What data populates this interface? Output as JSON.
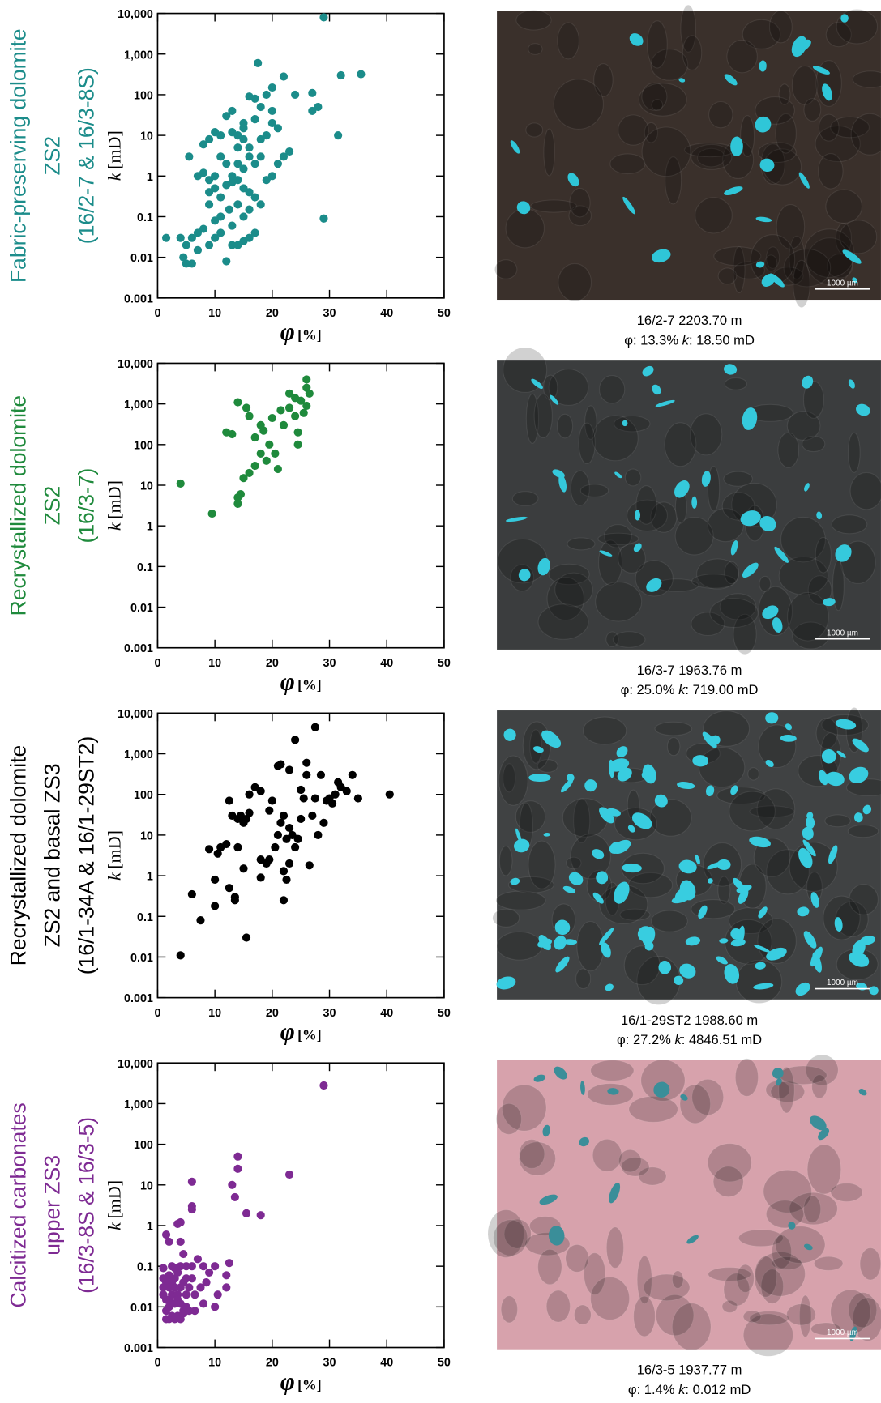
{
  "chart_data": [
    {
      "type": "scatter",
      "title_lines": [
        "Fabric-preserving dolomite",
        "ZS2",
        "(16/2-7 & 16/3-8S)"
      ],
      "color": "#1b8c8a",
      "xlabel": "φ",
      "xunit": "[%]",
      "ylabel": "k",
      "yunit": "[mD]",
      "xlim": [
        0,
        50
      ],
      "xticks": [
        0,
        10,
        20,
        30,
        40,
        50
      ],
      "ylim": [
        0.001,
        10000
      ],
      "log_y": true,
      "yticks": [
        0.001,
        0.01,
        0.1,
        1,
        10,
        100,
        {
          "value": 1000,
          "label": "1,000"
        },
        {
          "value": 10000,
          "label": "10,000"
        }
      ],
      "x": [
        29,
        17.5,
        22,
        20,
        24,
        27,
        28,
        27,
        32,
        35.5,
        31.5,
        29,
        19,
        18,
        20,
        17,
        16,
        15,
        17,
        19,
        18,
        21,
        22,
        23,
        21,
        20,
        19,
        18,
        17,
        16,
        15,
        14,
        13,
        13,
        12,
        11,
        10,
        9,
        8,
        5.5,
        7,
        8,
        9,
        10,
        11,
        12,
        13,
        14,
        15,
        16,
        17,
        18,
        12.5,
        11,
        10,
        9,
        8,
        7,
        6,
        5,
        4,
        1.5,
        4.5,
        5,
        6,
        7,
        9,
        10,
        11,
        12,
        13,
        14,
        15,
        16,
        13,
        15,
        14,
        16,
        17,
        12,
        11,
        10,
        9,
        14,
        15,
        16,
        14,
        13,
        15,
        20
      ],
      "y": [
        8000,
        600,
        280,
        150,
        100,
        110,
        50,
        40,
        300,
        320,
        10,
        0.09,
        100,
        50,
        40,
        80,
        90,
        20,
        25,
        10,
        8,
        15,
        3,
        4,
        2,
        1,
        0.8,
        3,
        2,
        3,
        1.5,
        2,
        1,
        40,
        30,
        10,
        12,
        8,
        6,
        3,
        1,
        1.2,
        0.8,
        0.5,
        0.3,
        0.6,
        0.7,
        0.8,
        0.5,
        0.4,
        0.3,
        0.2,
        0.15,
        0.1,
        0.08,
        0.2,
        0.05,
        0.04,
        0.03,
        0.02,
        0.03,
        0.03,
        0.01,
        0.007,
        0.007,
        0.015,
        0.02,
        0.03,
        0.04,
        0.008,
        0.02,
        0.02,
        0.025,
        0.03,
        0.06,
        0.1,
        0.2,
        0.15,
        0.04,
        2,
        3,
        1,
        0.4,
        5,
        8,
        5,
        10,
        12,
        15,
        20
      ],
      "image_color": "#3a302b",
      "pore_color": "#2fc6d8",
      "caption": [
        "16/2-7 2203.70 m",
        "φ: 13.3% ",
        "k",
        ": 18.50 mD"
      ],
      "scale_bar": "1000 µm"
    },
    {
      "type": "scatter",
      "title_lines": [
        "Recrystallized dolomite",
        "ZS2",
        "(16/3-7)"
      ],
      "color": "#1f8a3c",
      "xlabel": "φ",
      "xunit": "[%]",
      "ylabel": "k",
      "yunit": "[mD]",
      "xlim": [
        0,
        50
      ],
      "xticks": [
        0,
        10,
        20,
        30,
        40,
        50
      ],
      "ylim": [
        0.001,
        10000
      ],
      "log_y": true,
      "yticks": [
        0.001,
        0.01,
        0.1,
        1,
        10,
        100,
        {
          "value": 1000,
          "label": "1,000"
        },
        {
          "value": 10000,
          "label": "10,000"
        }
      ],
      "x": [
        4,
        9.5,
        12,
        13,
        14,
        15.5,
        16,
        14,
        14.5,
        15,
        16,
        17,
        18,
        18.5,
        19,
        20,
        19.5,
        20.5,
        21,
        21.5,
        22,
        23,
        23,
        24,
        24,
        24.5,
        24.5,
        25,
        25.5,
        26,
        26,
        26.5,
        26,
        14,
        17,
        18
      ],
      "y": [
        11,
        2,
        200,
        180,
        1100,
        800,
        500,
        3.5,
        6,
        15,
        20,
        30,
        60,
        220,
        40,
        450,
        100,
        60,
        25,
        700,
        300,
        800,
        1800,
        1400,
        500,
        100,
        200,
        1200,
        600,
        2500,
        4000,
        1800,
        900,
        5,
        150,
        300
      ],
      "image_color": "#3b3d3e",
      "pore_color": "#35c9dc",
      "caption": [
        "16/3-7 1963.76 m",
        "φ: 25.0% ",
        "k",
        ": 719.00 mD"
      ],
      "scale_bar": "1000 µm"
    },
    {
      "type": "scatter",
      "title_lines": [
        "Recrystallized dolomite",
        "ZS2 and basal ZS3",
        "(16/1-34A & 16/1-29ST2)"
      ],
      "color": "#000000",
      "xlabel": "φ",
      "xunit": "[%]",
      "ylabel": "k",
      "yunit": "[mD]",
      "xlim": [
        0,
        50
      ],
      "xticks": [
        0,
        10,
        20,
        30,
        40,
        50
      ],
      "ylim": [
        0.001,
        10000
      ],
      "log_y": true,
      "yticks": [
        0.001,
        0.01,
        0.1,
        1,
        10,
        100,
        {
          "value": 1000,
          "label": "1,000"
        },
        {
          "value": 10000,
          "label": "10,000"
        }
      ],
      "x": [
        4,
        6,
        7.5,
        9,
        10,
        10,
        10.5,
        11,
        12,
        12.5,
        12.5,
        13,
        13.5,
        13.5,
        14,
        14,
        14.5,
        15,
        15,
        15.5,
        15.5,
        16,
        17,
        18,
        18,
        18,
        19,
        19.5,
        20,
        20.5,
        21,
        21,
        21.5,
        21.5,
        22,
        22,
        22,
        22.5,
        22.5,
        23,
        23,
        23,
        23.5,
        24,
        24,
        24.5,
        25,
        25,
        25.5,
        26,
        26,
        26.5,
        27,
        27.5,
        27.5,
        28,
        28.5,
        29,
        29.5,
        30,
        30.5,
        31,
        31.5,
        32,
        33,
        34,
        35,
        40.5,
        19.5,
        16
      ],
      "y": [
        0.011,
        0.35,
        0.08,
        4.5,
        0.8,
        0.18,
        3.5,
        5,
        6,
        0.5,
        70,
        30,
        0.3,
        0.25,
        25,
        5,
        30,
        20,
        1.5,
        25,
        0.03,
        100,
        150,
        120,
        0.9,
        2.5,
        2,
        2.5,
        70,
        5,
        500,
        10,
        550,
        20,
        30,
        1.3,
        0.25,
        0.8,
        8,
        400,
        15,
        2,
        10,
        2200,
        5,
        8,
        130,
        25,
        80,
        600,
        300,
        1.8,
        30,
        4500,
        80,
        10,
        300,
        20,
        70,
        80,
        60,
        100,
        200,
        150,
        120,
        300,
        80,
        100,
        40,
        35
      ],
      "image_color": "#404243",
      "pore_color": "#38cde0",
      "caption": [
        "16/1-29ST2 1988.60 m",
        "φ: 27.2% ",
        "k",
        ": 4846.51 mD"
      ],
      "scale_bar": "1000 µm"
    },
    {
      "type": "scatter",
      "title_lines": [
        "Calcitized carbonates",
        "upper ZS3",
        "(16/3-8S & 16/3-5)"
      ],
      "color": "#7e2a93",
      "xlabel": "φ",
      "xunit": "[%]",
      "ylabel": "k",
      "yunit": "[mD]",
      "xlim": [
        0,
        50
      ],
      "xticks": [
        0,
        10,
        20,
        30,
        40,
        50
      ],
      "ylim": [
        0.001,
        10000
      ],
      "log_y": true,
      "yticks": [
        0.001,
        0.01,
        0.1,
        1,
        10,
        100,
        {
          "value": 1000,
          "label": "1,000"
        },
        {
          "value": 10000,
          "label": "10,000"
        }
      ],
      "x": [
        29,
        23,
        18,
        15.5,
        14,
        14,
        13,
        13.5,
        6,
        6,
        6,
        4,
        3.5,
        1.5,
        2,
        4,
        4.5,
        12.5,
        12,
        12,
        10,
        9,
        8.5,
        10.5,
        10,
        8,
        7,
        6,
        6,
        5.5,
        5,
        4.5,
        4,
        3.5,
        3,
        3,
        2.5,
        2,
        2,
        1.5,
        1.5,
        2,
        2.5,
        3,
        3.5,
        4,
        4.5,
        5,
        5.5,
        6.5,
        1,
        1,
        1,
        1,
        1.5,
        2,
        2.5,
        3,
        3.5,
        4,
        4.5,
        5,
        2.5,
        3,
        3.5,
        4,
        2,
        1.5,
        8,
        7.5,
        6.5,
        5
      ],
      "y": [
        2800,
        18,
        1.8,
        2,
        50,
        25,
        10,
        5,
        12,
        2.5,
        3,
        1.2,
        1.1,
        0.6,
        0.4,
        0.4,
        0.2,
        0.12,
        0.06,
        0.03,
        0.1,
        0.07,
        0.04,
        0.02,
        0.01,
        0.012,
        0.15,
        0.1,
        0.05,
        0.03,
        0.02,
        0.008,
        0.1,
        0.07,
        0.05,
        0.03,
        0.02,
        0.015,
        0.01,
        0.008,
        0.005,
        0.005,
        0.006,
        0.005,
        0.006,
        0.005,
        0.007,
        0.01,
        0.008,
        0.008,
        0.09,
        0.05,
        0.03,
        0.02,
        0.04,
        0.06,
        0.1,
        0.09,
        0.02,
        0.03,
        0.04,
        0.1,
        0.04,
        0.012,
        0.015,
        0.012,
        0.03,
        0.015,
        0.1,
        0.03,
        0.02,
        0.05
      ],
      "image_color": "#d7a2ac",
      "pore_color": "#3a8e99",
      "caption": [
        "16/3-5 1937.77 m",
        "φ: 1.4% ",
        "k",
        ": 0.012 mD"
      ],
      "scale_bar": "1000 µm"
    }
  ]
}
